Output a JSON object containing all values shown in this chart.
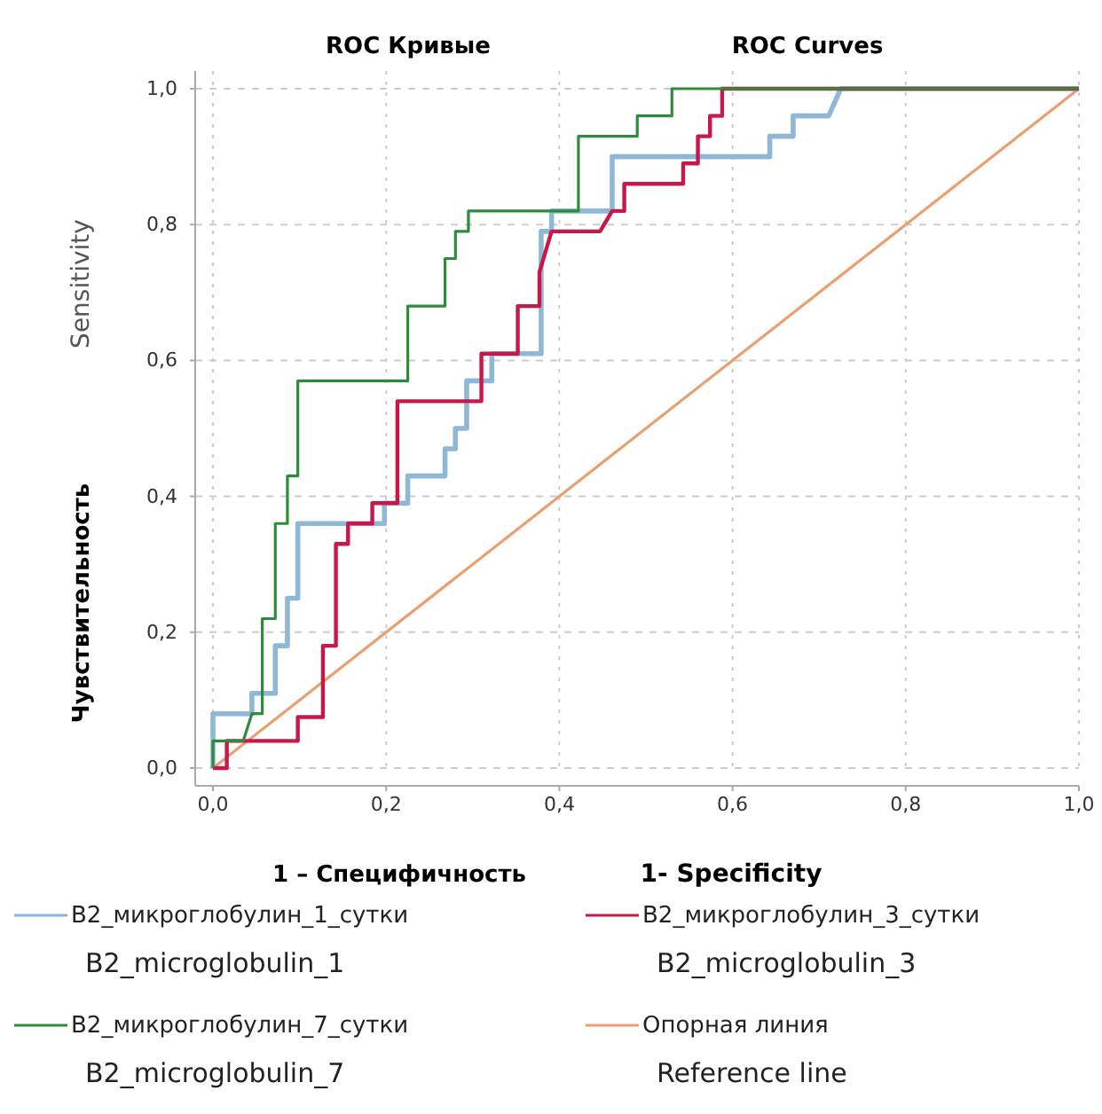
{
  "chart_data": {
    "type": "line",
    "title": "ROC Кривые",
    "subtitle": "ROC Curves",
    "xlabel": "1 – Специфичность",
    "ylabel": "Чувствительность",
    "annotations": [
      "Sensitivity",
      "1- Specificity"
    ],
    "xlim": [
      0,
      1
    ],
    "ylim": [
      0,
      1
    ],
    "xticks": [
      {
        "value": 0,
        "label": "0,0"
      },
      {
        "value": 0.2,
        "label": "0,2"
      },
      {
        "value": 0.4,
        "label": "0,4"
      },
      {
        "value": 0.6,
        "label": "0,6"
      },
      {
        "value": 0.8,
        "label": "0,8"
      },
      {
        "value": 1,
        "label": "1,0"
      }
    ],
    "yticks": [
      {
        "value": 0,
        "label": "0,0"
      },
      {
        "value": 0.2,
        "label": "0,2"
      },
      {
        "value": 0.4,
        "label": "0,4"
      },
      {
        "value": 0.6,
        "label": "0,6"
      },
      {
        "value": 0.8,
        "label": "0,8"
      },
      {
        "value": 1,
        "label": "1,0"
      }
    ],
    "grid": true,
    "legend": "bottom",
    "marker": "none",
    "line_style": "solid",
    "series": [
      {
        "name": "B2_микроглобулин_1_сутки\nB2_microglobulin_1",
        "color": "#8fb8d8",
        "x": [
          0,
          0,
          0.045,
          0.045,
          0.072,
          0.072,
          0.086,
          0.086,
          0.098,
          0.098,
          0.198,
          0.198,
          0.225,
          0.225,
          0.268,
          0.268,
          0.28,
          0.28,
          0.293,
          0.293,
          0.322,
          0.322,
          0.379,
          0.379,
          0.391,
          0.391,
          0.461,
          0.461,
          0.643,
          0.643,
          0.67,
          0.67,
          0.711,
          0.725,
          1
        ],
        "values": [
          0,
          0.08,
          0.08,
          0.11,
          0.11,
          0.18,
          0.18,
          0.25,
          0.25,
          0.36,
          0.36,
          0.39,
          0.39,
          0.43,
          0.43,
          0.47,
          0.47,
          0.5,
          0.5,
          0.57,
          0.57,
          0.61,
          0.61,
          0.79,
          0.79,
          0.82,
          0.82,
          0.9,
          0.9,
          0.93,
          0.93,
          0.96,
          0.96,
          1,
          1
        ]
      },
      {
        "name": "B2_микроглобулин_3_сутки\nB2_microglobulin_3",
        "color": "#c8184a",
        "x": [
          0,
          0.016,
          0.016,
          0.098,
          0.098,
          0.127,
          0.127,
          0.142,
          0.142,
          0.156,
          0.156,
          0.184,
          0.184,
          0.213,
          0.213,
          0.31,
          0.31,
          0.352,
          0.352,
          0.377,
          0.377,
          0.391,
          0.447,
          0.461,
          0.475,
          0.475,
          0.543,
          0.543,
          0.56,
          0.56,
          0.574,
          0.574,
          0.588,
          0.588,
          1
        ],
        "values": [
          0,
          0,
          0.04,
          0.04,
          0.075,
          0.075,
          0.18,
          0.18,
          0.33,
          0.33,
          0.36,
          0.36,
          0.39,
          0.39,
          0.54,
          0.54,
          0.61,
          0.61,
          0.68,
          0.68,
          0.73,
          0.79,
          0.79,
          0.82,
          0.82,
          0.86,
          0.86,
          0.89,
          0.89,
          0.93,
          0.93,
          0.96,
          0.96,
          1,
          1
        ]
      },
      {
        "name": "B2_микроглобулин_7_сутки\nB2_microglobulin_7",
        "color": "#2e8b3e",
        "x": [
          0,
          0,
          0.035,
          0.045,
          0.057,
          0.057,
          0.072,
          0.072,
          0.086,
          0.086,
          0.098,
          0.098,
          0.225,
          0.225,
          0.268,
          0.268,
          0.28,
          0.28,
          0.295,
          0.295,
          0.422,
          0.422,
          0.49,
          0.49,
          0.53,
          0.53,
          1
        ],
        "values": [
          0,
          0.04,
          0.04,
          0.08,
          0.08,
          0.22,
          0.22,
          0.36,
          0.36,
          0.43,
          0.43,
          0.57,
          0.57,
          0.68,
          0.68,
          0.75,
          0.75,
          0.79,
          0.79,
          0.82,
          0.82,
          0.93,
          0.93,
          0.96,
          0.96,
          1,
          1
        ]
      },
      {
        "name": "Опорная линия\nReference line",
        "color": "#e8a070",
        "x": [
          0,
          1
        ],
        "values": [
          0,
          1
        ]
      }
    ]
  }
}
